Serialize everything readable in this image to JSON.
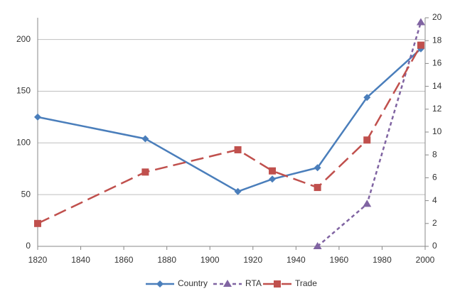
{
  "chart_data": {
    "type": "line",
    "x": [
      1820,
      1870,
      1913,
      1929,
      1950,
      1973,
      1998
    ],
    "series": [
      {
        "name": "Country",
        "color": "#4a7ebb",
        "marker": "diamond",
        "dash": "solid",
        "values": [
          125,
          104,
          53,
          65,
          76,
          144,
          191
        ]
      },
      {
        "name": "RTA",
        "color": "#8064a2",
        "marker": "triangle",
        "dash": "dotted",
        "axis": "y2",
        "values": [
          null,
          null,
          null,
          null,
          0,
          3.7,
          19.6
        ]
      },
      {
        "name": "Trade",
        "color": "#c0504d",
        "marker": "square",
        "dash": "dashed",
        "axis": "y2",
        "values": [
          2.0,
          6.5,
          8.45,
          6.6,
          5.15,
          9.3,
          17.6
        ]
      }
    ],
    "xlim": [
      1820,
      2000
    ],
    "xticks": [
      1820,
      1840,
      1860,
      1880,
      1900,
      1920,
      1940,
      1960,
      1980,
      2000
    ],
    "ylim": [
      0,
      221
    ],
    "yticks": [
      0,
      50,
      100,
      150,
      200
    ],
    "y2lim": [
      0,
      20
    ],
    "y2ticks": [
      0,
      2,
      4,
      6,
      8,
      10,
      12,
      14,
      16,
      18,
      20
    ],
    "grid": true,
    "legend": "bottom"
  }
}
